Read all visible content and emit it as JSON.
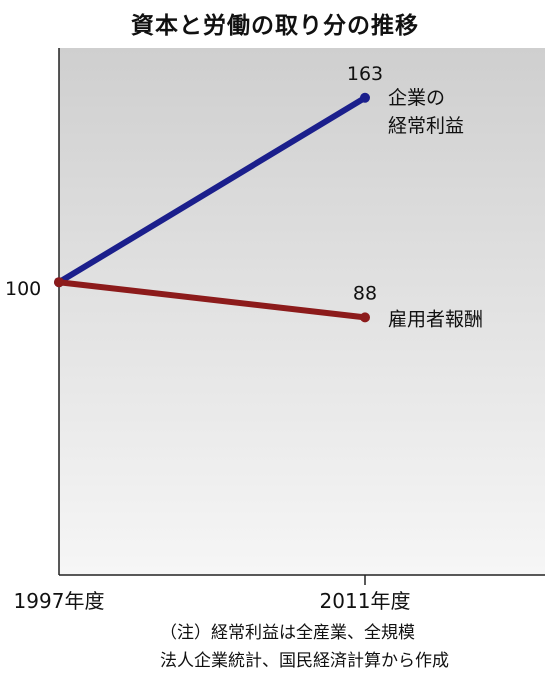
{
  "chart_data": {
    "type": "line",
    "title": "資本と労働の取り分の推移",
    "x": [
      "1997年度",
      "2011年度"
    ],
    "series": [
      {
        "name": "企業の経常利益",
        "name_lines": [
          "企業の",
          "経常利益"
        ],
        "values": [
          100,
          163
        ],
        "color": "#1b1f8c"
      },
      {
        "name": "雇用者報酬",
        "name_lines": [
          "雇用者報酬"
        ],
        "values": [
          100,
          88
        ],
        "color": "#8c1b1b"
      }
    ],
    "start_label": "100",
    "end_labels": [
      "163",
      "88"
    ],
    "ylim": [
      0,
      180
    ],
    "grid": false
  },
  "notes": [
    "（注）経常利益は全産業、全規模",
    "法人企業統計、国民経済計算から作成"
  ]
}
